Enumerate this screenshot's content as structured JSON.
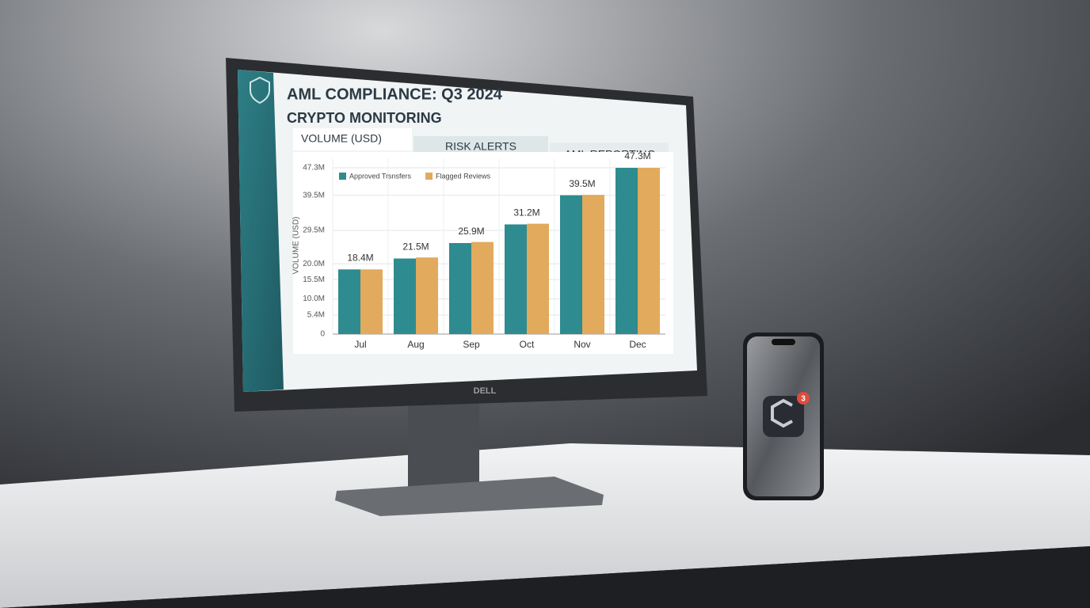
{
  "screen": {
    "header": {
      "title": "AML COMPLIANCE: Q3 2024",
      "subtitle": "CRYPTO MONITORING"
    },
    "tabs": [
      "VOLUME (USD)",
      "RISK ALERTS",
      "AML REPORTING"
    ]
  },
  "chart_data": {
    "type": "bar",
    "y_label": "VOLUME (USD)",
    "categories": [
      "Jul",
      "Aug",
      "Sep",
      "Oct",
      "Nov",
      "Dec"
    ],
    "series": [
      {
        "name": "Approved Trsnsfers",
        "color": "#2e8b8f",
        "values": [
          18.4,
          21.5,
          25.9,
          31.2,
          39.5,
          47.3
        ],
        "value_labels": [
          "18.4M",
          "21.5M",
          "25.9M",
          "31.2M",
          "39.5M",
          "47.3M"
        ]
      },
      {
        "name": "Flagged Reviews",
        "color": "#e2aa5c",
        "values": [
          18.4,
          21.8,
          26.2,
          31.4,
          39.6,
          47.3
        ]
      }
    ],
    "ylim": [
      0,
      50
    ],
    "yticks": [
      0,
      {
        "value": 5.4,
        "label": "5.4M"
      },
      {
        "value": 10.0,
        "label": "10.0M"
      },
      {
        "value": 15.5,
        "label": "15.5M"
      },
      {
        "value": 20.0,
        "label": "20.0M"
      },
      {
        "value": 29.5,
        "label": "29.5M"
      },
      {
        "value": 39.5,
        "label": "39.5M"
      },
      {
        "value": 47.3,
        "label": "47.3M"
      }
    ],
    "grid": true,
    "legend": "top-left"
  },
  "devices": {
    "monitor_brand": "DELL",
    "phone_badge": "3"
  }
}
